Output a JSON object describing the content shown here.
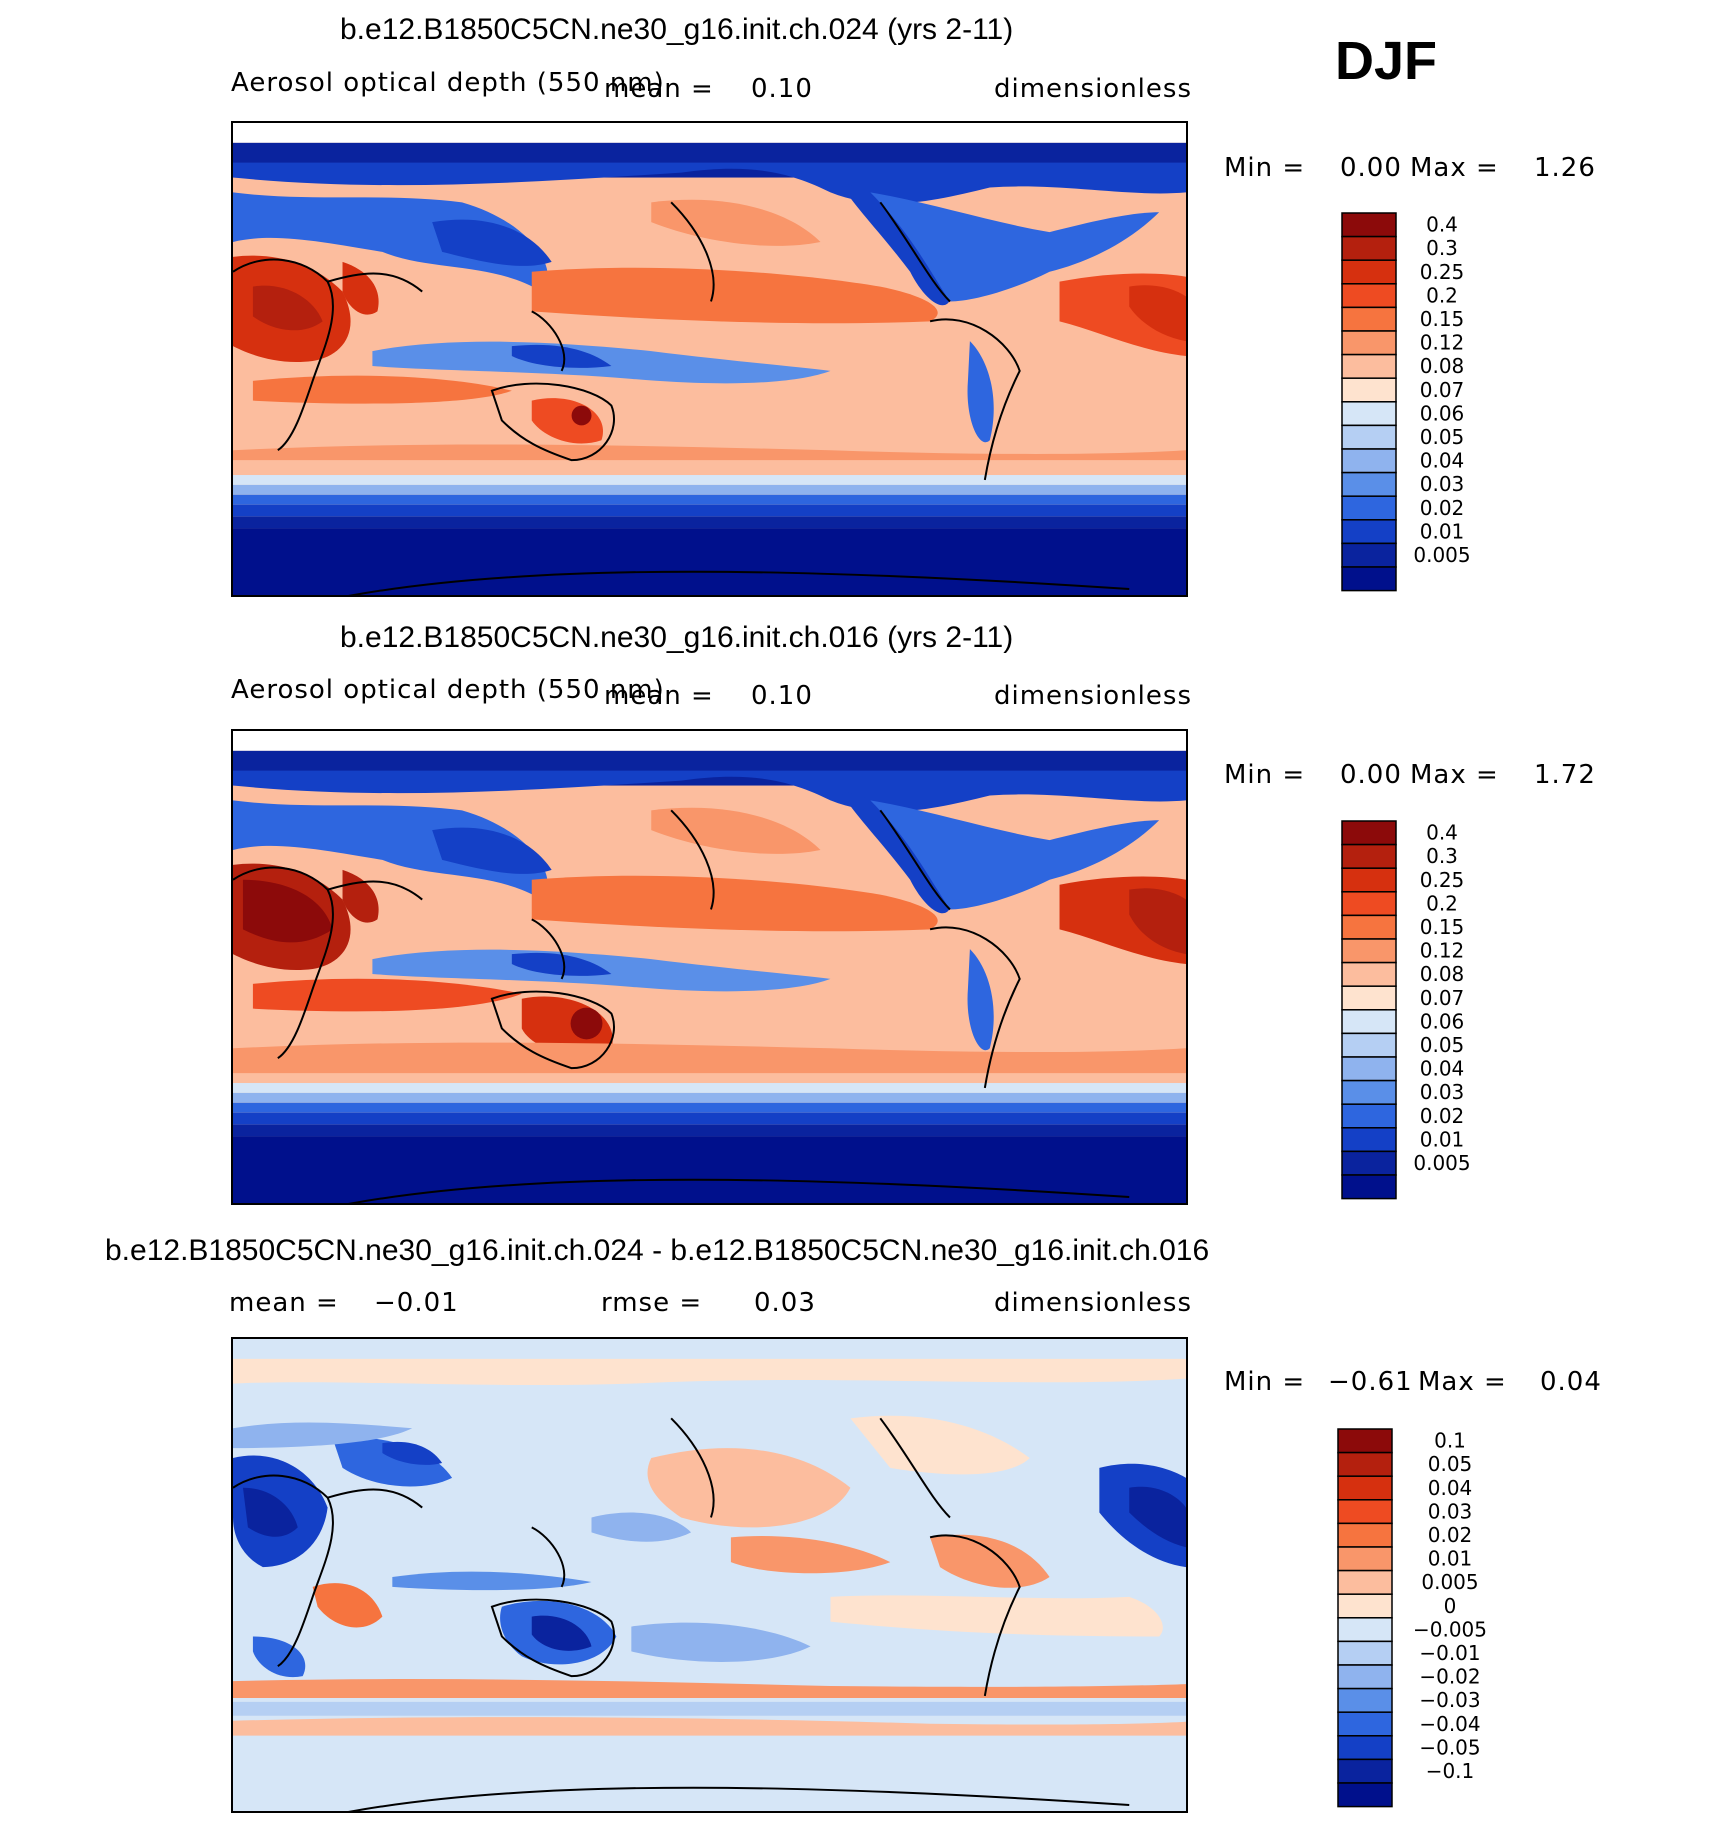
{
  "season": "DJF",
  "panels": [
    {
      "title": "b.e12.B1850C5CN.ne30_g16.init.ch.024 (yrs 2-11)",
      "left_text": "Aerosol optical depth (550 nm)",
      "mid_text": "mean =",
      "mid_value": "0.10",
      "right_text": "dimensionless",
      "min_label": "Min =",
      "min_value": "0.00",
      "max_label": "Max =",
      "max_value": "1.26"
    },
    {
      "title": "b.e12.B1850C5CN.ne30_g16.init.ch.016 (yrs 2-11)",
      "left_text": "Aerosol optical depth (550 nm)",
      "mid_text": "mean =",
      "mid_value": "0.10",
      "right_text": "dimensionless",
      "min_label": "Min =",
      "min_value": "0.00",
      "max_label": "Max =",
      "max_value": "1.72"
    },
    {
      "title": "b.e12.B1850C5CN.ne30_g16.init.ch.024 - b.e12.B1850C5CN.ne30_g16.init.ch.016",
      "left_text": "mean =",
      "left_value": "−0.01",
      "mid_text": "rmse =",
      "mid_value": "0.03",
      "right_text": "dimensionless",
      "min_label": "Min =",
      "min_value": "−0.61",
      "max_label": "Max =",
      "max_value": "0.04"
    }
  ],
  "colorbars": {
    "abs": {
      "labels": [
        "0.4",
        "0.3",
        "0.25",
        "0.2",
        "0.15",
        "0.12",
        "0.08",
        "0.07",
        "0.06",
        "0.05",
        "0.04",
        "0.03",
        "0.02",
        "0.01",
        "0.005"
      ],
      "colors": [
        "#8c0a0a",
        "#b4200e",
        "#d6300f",
        "#ee4b22",
        "#f6743f",
        "#f9966a",
        "#fcbd9e",
        "#fee3cf",
        "#d6e6f7",
        "#b5cff3",
        "#8fb3ee",
        "#5a8fe8",
        "#2e66df",
        "#1440c6",
        "#0a239e",
        "#00108c"
      ]
    },
    "diff": {
      "labels": [
        "0.1",
        "0.05",
        "0.04",
        "0.03",
        "0.02",
        "0.01",
        "0.005",
        "0",
        "−0.005",
        "−0.01",
        "−0.02",
        "−0.03",
        "−0.04",
        "−0.05",
        "−0.1"
      ],
      "colors": [
        "#8c0a0a",
        "#b4200e",
        "#d6300f",
        "#ee4b22",
        "#f6743f",
        "#f9966a",
        "#fcbd9e",
        "#fee3cf",
        "#d6e6f7",
        "#b5cff3",
        "#8fb3ee",
        "#5a8fe8",
        "#2e66df",
        "#1440c6",
        "#0a239e",
        "#00108c"
      ]
    }
  },
  "chart_data": [
    {
      "type": "heatmap",
      "title": "b.e12.B1850C5CN.ne30_g16.init.ch.024 (yrs 2-11)",
      "variable": "Aerosol optical depth (550 nm)",
      "units": "dimensionless",
      "mean": 0.1,
      "min": 0.0,
      "max": 1.26,
      "levels": [
        0.005,
        0.01,
        0.02,
        0.03,
        0.04,
        0.05,
        0.06,
        0.07,
        0.08,
        0.12,
        0.15,
        0.2,
        0.25,
        0.3,
        0.4
      ]
    },
    {
      "type": "heatmap",
      "title": "b.e12.B1850C5CN.ne30_g16.init.ch.016 (yrs 2-11)",
      "variable": "Aerosol optical depth (550 nm)",
      "units": "dimensionless",
      "mean": 0.1,
      "min": 0.0,
      "max": 1.72,
      "levels": [
        0.005,
        0.01,
        0.02,
        0.03,
        0.04,
        0.05,
        0.06,
        0.07,
        0.08,
        0.12,
        0.15,
        0.2,
        0.25,
        0.3,
        0.4
      ]
    },
    {
      "type": "heatmap",
      "title": "b.e12.B1850C5CN.ne30_g16.init.ch.024 - b.e12.B1850C5CN.ne30_g16.init.ch.016",
      "units": "dimensionless",
      "mean": -0.01,
      "rmse": 0.03,
      "min": -0.61,
      "max": 0.04,
      "levels": [
        -0.1,
        -0.05,
        -0.04,
        -0.03,
        -0.02,
        -0.01,
        -0.005,
        0,
        0.005,
        0.01,
        0.02,
        0.03,
        0.04,
        0.05,
        0.1
      ]
    }
  ]
}
